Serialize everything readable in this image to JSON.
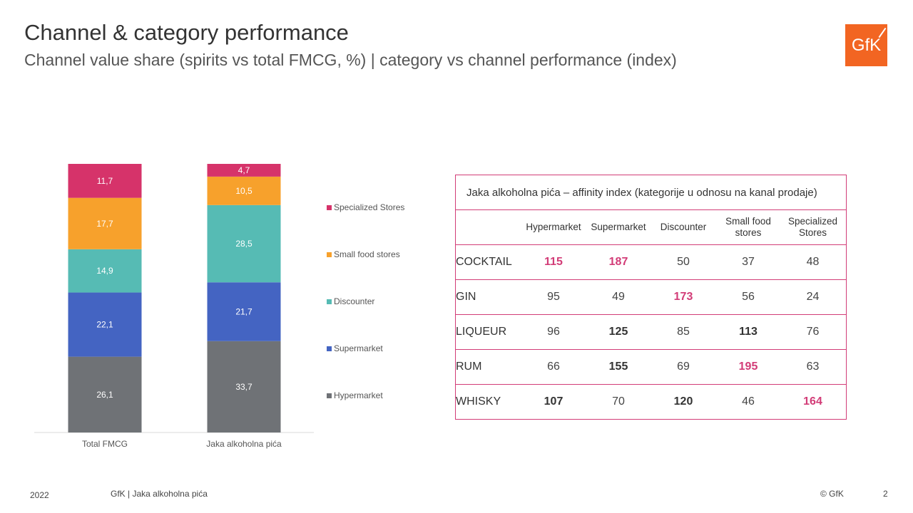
{
  "header": {
    "title": "Channel & category performance",
    "subtitle": "Channel value share (spirits vs total FMCG, %) | category vs channel performance (index)",
    "logo_text": "GfK"
  },
  "chart_data": {
    "type": "bar",
    "stacked": true,
    "categories": [
      "Total FMCG",
      "Jaka alkoholna pića"
    ],
    "series": [
      {
        "name": "Hypermarket",
        "values": [
          26.1,
          33.7
        ],
        "labels": [
          "26,1",
          "33,7"
        ],
        "color": "#6f7276"
      },
      {
        "name": "Supermarket",
        "values": [
          22.1,
          21.7
        ],
        "labels": [
          "22,1",
          "21,7"
        ],
        "color": "#4464c2"
      },
      {
        "name": "Discounter",
        "values": [
          14.9,
          28.5
        ],
        "labels": [
          "14,9",
          "28,5"
        ],
        "color": "#56bbb4"
      },
      {
        "name": "Small food stores",
        "values": [
          17.7,
          10.5
        ],
        "labels": [
          "17,7",
          "10,5"
        ],
        "color": "#f7a12c"
      },
      {
        "name": "Specialized Stores",
        "values": [
          11.7,
          4.7
        ],
        "labels": [
          "11,7",
          "4,7"
        ],
        "color": "#d6336a"
      }
    ],
    "legend": "right",
    "grid": false
  },
  "table": {
    "title": "Jaka alkoholna pića – affinity index (kategorije u odnosu na kanal prodaje)",
    "columns": [
      "Hypermarket",
      "Supermarket",
      "Discounter",
      "Small food stores",
      "Specialized Stores"
    ],
    "rows": [
      {
        "label": "COCKTAIL",
        "values": [
          "115",
          "187",
          "50",
          "37",
          "48"
        ],
        "styles": [
          "pink",
          "pink",
          "",
          "",
          ""
        ]
      },
      {
        "label": "GIN",
        "values": [
          "95",
          "49",
          "173",
          "56",
          "24"
        ],
        "styles": [
          "",
          "",
          "pink",
          "",
          ""
        ]
      },
      {
        "label": "LIQUEUR",
        "values": [
          "96",
          "125",
          "85",
          "113",
          "76"
        ],
        "styles": [
          "",
          "bold",
          "",
          "bold",
          ""
        ]
      },
      {
        "label": "RUM",
        "values": [
          "66",
          "155",
          "69",
          "195",
          "63"
        ],
        "styles": [
          "",
          "bold",
          "",
          "pink",
          ""
        ]
      },
      {
        "label": "WHISKY",
        "values": [
          "107",
          "70",
          "120",
          "46",
          "164"
        ],
        "styles": [
          "bold",
          "",
          "bold",
          "",
          "pink"
        ]
      }
    ],
    "colors": {
      "highlight": "#d23c77",
      "border": "#d23c77"
    }
  },
  "footer": {
    "year": "2022",
    "source": "GfK | Jaka alkoholna pića",
    "copyright": "© GfK",
    "page": "2"
  }
}
